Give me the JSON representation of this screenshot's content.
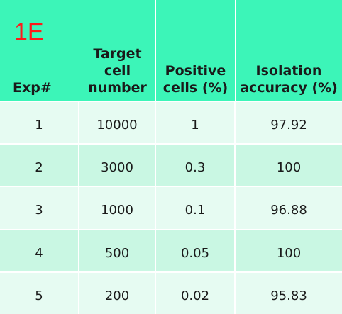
{
  "panel_label": "1E",
  "chart_data": {
    "type": "table",
    "columns": [
      "Exp#",
      "Target cell number",
      "Positive cells (%)",
      "Isolation accuracy (%)"
    ],
    "rows": [
      [
        "1",
        "10000",
        "1",
        "97.92"
      ],
      [
        "2",
        "3000",
        "0.3",
        "100"
      ],
      [
        "3",
        "1000",
        "0.1",
        "96.88"
      ],
      [
        "4",
        "500",
        "0.05",
        "100"
      ],
      [
        "5",
        "200",
        "0.02",
        "95.83"
      ]
    ]
  },
  "colors": {
    "header_bg": "#3cf5b8",
    "row_light": "#e6fbf2",
    "row_dark": "#c9f7e3",
    "panel_label": "#ff1a1a"
  }
}
